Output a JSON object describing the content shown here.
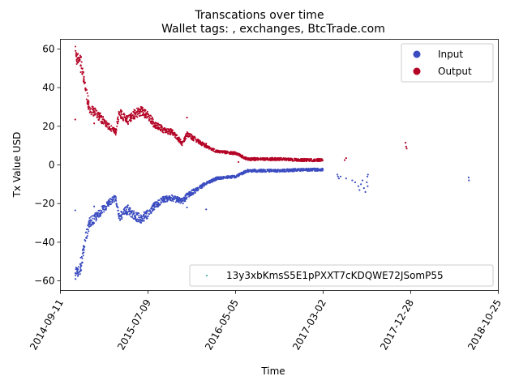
{
  "chart_data": {
    "type": "scatter",
    "title": "Transcations over time",
    "subtitle": "Wallet tags: , exchanges, BtcTrade.com",
    "xlabel": "Time",
    "ylabel": "Tx Value USD",
    "xlim": [
      "2014-09-11",
      "2018-10-25"
    ],
    "ylim": [
      -65,
      65
    ],
    "x_ticks": [
      "2014-09-11",
      "2015-07-09",
      "2016-05-05",
      "2017-03-02",
      "2017-12-28",
      "2018-10-25"
    ],
    "y_ticks": [
      -60,
      -40,
      -20,
      0,
      20,
      40,
      60
    ],
    "grid": false,
    "legends": [
      {
        "placement": "top-right",
        "entries": [
          "Input",
          "Output"
        ]
      },
      {
        "placement": "bottom-right",
        "entries": [
          "13y3xbKmsS5E1pPXXT7cKDQWE72JSomP55"
        ]
      }
    ],
    "colors": {
      "Input": "#3b4cc0",
      "Output": "#b40426",
      "address": "#2a9d8f"
    },
    "series": [
      {
        "name": "Output",
        "trend": [
          [
            "2014-11-01",
            59
          ],
          [
            "2014-11-05",
            55
          ],
          [
            "2014-11-20",
            54
          ],
          [
            "2014-12-05",
            40
          ],
          [
            "2014-12-20",
            29
          ],
          [
            "2015-01-10",
            27
          ],
          [
            "2015-02-05",
            23
          ],
          [
            "2015-03-01",
            19
          ],
          [
            "2015-03-20",
            17
          ],
          [
            "2015-04-01",
            27
          ],
          [
            "2015-05-01",
            23
          ],
          [
            "2015-05-20",
            26
          ],
          [
            "2015-06-15",
            28
          ],
          [
            "2015-07-10",
            25
          ],
          [
            "2015-08-01",
            21
          ],
          [
            "2015-09-01",
            18
          ],
          [
            "2015-10-01",
            17
          ],
          [
            "2015-11-05",
            11
          ],
          [
            "2015-11-20",
            16
          ],
          [
            "2015-12-20",
            13
          ],
          [
            "2016-01-20",
            10
          ],
          [
            "2016-03-01",
            7
          ],
          [
            "2016-05-05",
            6
          ],
          [
            "2016-06-15",
            3
          ],
          [
            "2016-08-01",
            3
          ],
          [
            "2016-10-01",
            3
          ],
          [
            "2016-12-15",
            2.5
          ],
          [
            "2017-02-01",
            2.5
          ],
          [
            "2017-03-02",
            2.5
          ]
        ],
        "points": [
          [
            "2014-11-01",
            23.5
          ],
          [
            "2014-11-02",
            59
          ],
          [
            "2014-11-10",
            57.5
          ],
          [
            "2014-11-20",
            48
          ],
          [
            "2014-12-01",
            44
          ],
          [
            "2015-01-05",
            21.5
          ],
          [
            "2015-11-20",
            24.5
          ],
          [
            "2016-01-25",
            11
          ],
          [
            "2016-05-15",
            1.5
          ],
          [
            "2017-05-15",
            2.5
          ],
          [
            "2017-05-20",
            3.5
          ],
          [
            "2017-12-10",
            11.5
          ],
          [
            "2017-12-12",
            9.5
          ],
          [
            "2017-12-14",
            8.5
          ]
        ]
      },
      {
        "name": "Input",
        "trend": [
          [
            "2014-11-01",
            -55
          ],
          [
            "2014-11-20",
            -54
          ],
          [
            "2014-12-05",
            -38
          ],
          [
            "2014-12-20",
            -30
          ],
          [
            "2015-01-10",
            -27
          ],
          [
            "2015-02-05",
            -23
          ],
          [
            "2015-03-01",
            -19
          ],
          [
            "2015-03-20",
            -17
          ],
          [
            "2015-04-01",
            -27
          ],
          [
            "2015-05-01",
            -23
          ],
          [
            "2015-05-20",
            -26
          ],
          [
            "2015-06-15",
            -28
          ],
          [
            "2015-07-10",
            -25
          ],
          [
            "2015-08-01",
            -21
          ],
          [
            "2015-09-01",
            -18
          ],
          [
            "2015-10-01",
            -17
          ],
          [
            "2015-11-05",
            -19
          ],
          [
            "2015-11-20",
            -16
          ],
          [
            "2015-12-20",
            -13
          ],
          [
            "2016-01-20",
            -10
          ],
          [
            "2016-03-01",
            -7
          ],
          [
            "2016-05-05",
            -6
          ],
          [
            "2016-06-15",
            -3
          ],
          [
            "2016-08-01",
            -3
          ],
          [
            "2016-10-01",
            -3
          ],
          [
            "2016-12-15",
            -2.5
          ],
          [
            "2017-02-01",
            -2.5
          ],
          [
            "2017-03-02",
            -2.5
          ]
        ],
        "points": [
          [
            "2014-11-01",
            -23.5
          ],
          [
            "2014-11-02",
            -59
          ],
          [
            "2014-11-10",
            -57.5
          ],
          [
            "2014-11-20",
            -48
          ],
          [
            "2014-12-01",
            -44
          ],
          [
            "2015-01-05",
            -21.5
          ],
          [
            "2015-11-20",
            -22
          ],
          [
            "2016-01-25",
            -23
          ],
          [
            "2017-04-20",
            -5
          ],
          [
            "2017-04-22",
            -6
          ],
          [
            "2017-04-25",
            -7
          ],
          [
            "2017-05-01",
            -6
          ],
          [
            "2017-05-20",
            -7
          ],
          [
            "2017-06-10",
            -8
          ],
          [
            "2017-06-20",
            -9
          ],
          [
            "2017-07-01",
            -11
          ],
          [
            "2017-07-05",
            -13
          ],
          [
            "2017-07-10",
            -10
          ],
          [
            "2017-07-15",
            -8
          ],
          [
            "2017-07-20",
            -12
          ],
          [
            "2017-07-25",
            -14
          ],
          [
            "2017-07-30",
            -9
          ],
          [
            "2017-08-01",
            -6
          ],
          [
            "2017-08-02",
            -11
          ],
          [
            "2017-08-03",
            -5
          ],
          [
            "2018-07-15",
            -6.5
          ],
          [
            "2018-07-16",
            -8
          ]
        ]
      }
    ]
  }
}
